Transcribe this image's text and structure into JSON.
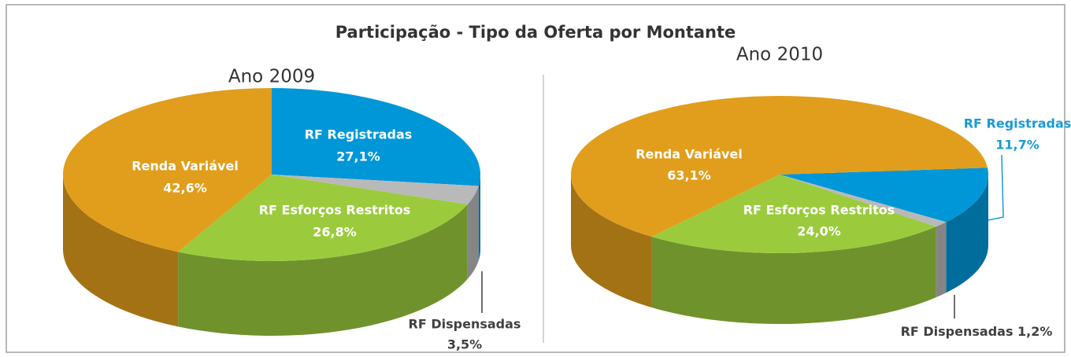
{
  "title": "Participação - Tipo da Oferta por Montante",
  "chart_data": [
    {
      "type": "pie",
      "title": "Ano 2009",
      "categories": [
        "RF Registradas",
        "RF Dispensadas",
        "RF Esforços Restritos",
        "Renda Variável"
      ],
      "values": [
        27.1,
        3.5,
        26.8,
        42.6
      ],
      "value_labels": [
        "27,1%",
        "3,5%",
        "26,8%",
        "42,6%"
      ],
      "colors": [
        "#0097d8",
        "#b9b9b9",
        "#9bcb3d",
        "#e19e1c"
      ]
    },
    {
      "type": "pie",
      "title": "Ano 2010",
      "categories": [
        "RF Registradas",
        "RF Dispensadas",
        "RF Esforços Restritos",
        "Renda Variável"
      ],
      "values": [
        11.7,
        1.2,
        24.0,
        63.1
      ],
      "value_labels": [
        "11,7%",
        "1,2%",
        "24,0%",
        "63,1%"
      ],
      "colors": [
        "#0097d8",
        "#b9b9b9",
        "#9bcb3d",
        "#e19e1c"
      ]
    }
  ]
}
